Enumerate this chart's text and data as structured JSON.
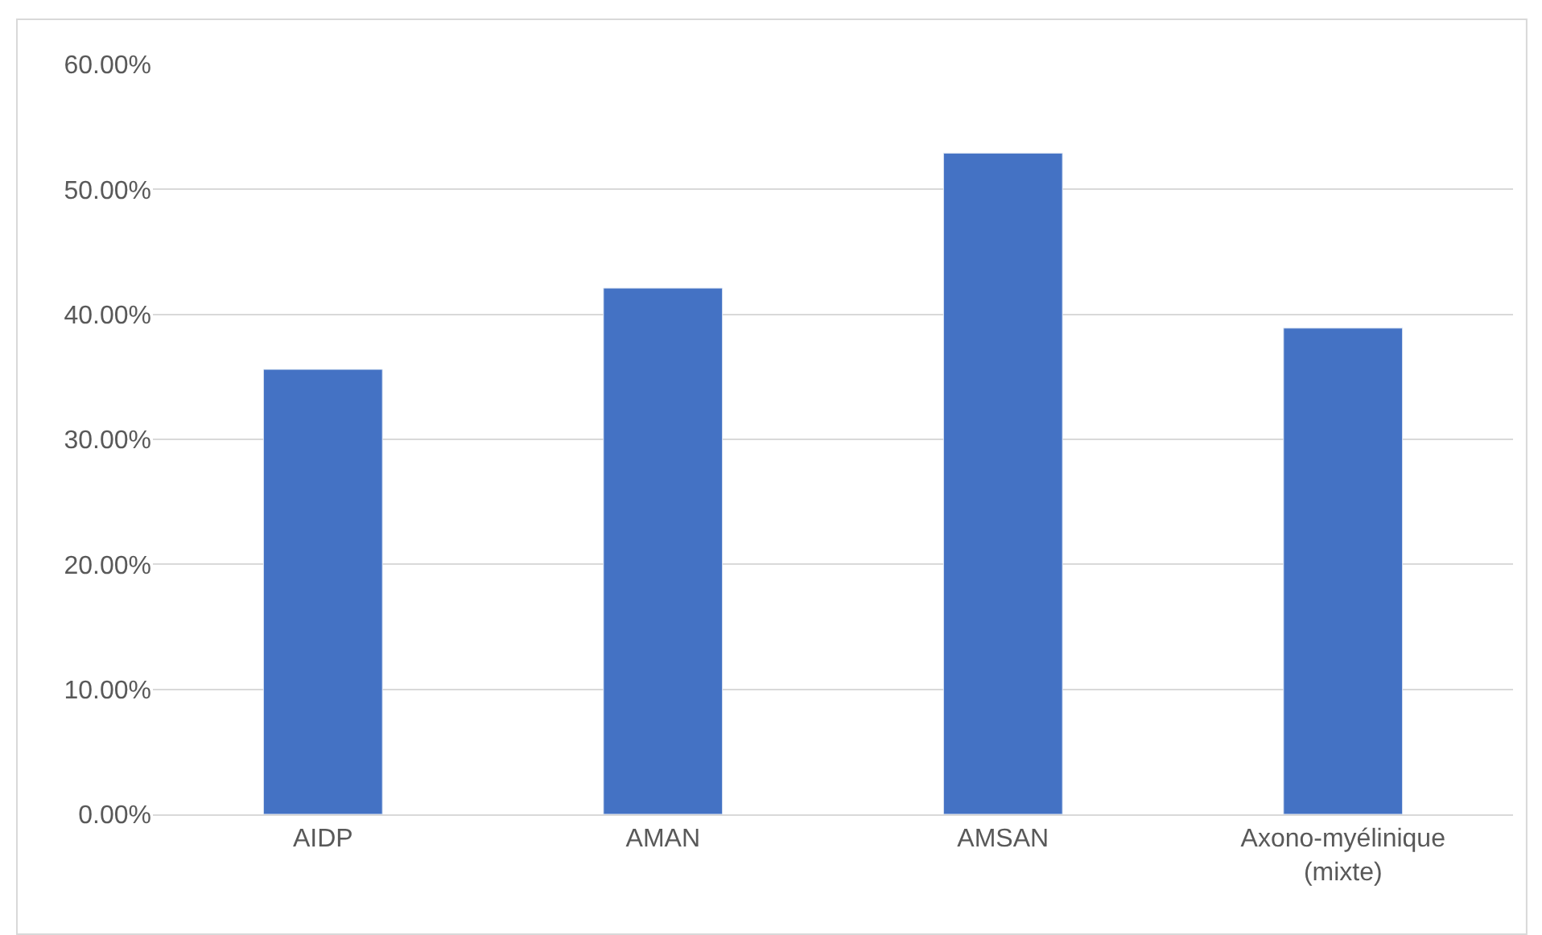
{
  "chart_data": {
    "type": "bar",
    "categories": [
      "AIDP",
      "AMAN",
      "AMSAN",
      "Axono-myélinique (mixte)"
    ],
    "values": [
      35.6,
      42.1,
      52.9,
      38.9
    ],
    "color": "#4472c4",
    "ylim": [
      0,
      60
    ],
    "yticks": [
      {
        "value": 0,
        "label": "0.00%"
      },
      {
        "value": 10,
        "label": "10.00%"
      },
      {
        "value": 20,
        "label": "20.00%"
      },
      {
        "value": 30,
        "label": "30.00%"
      },
      {
        "value": 40,
        "label": "40.00%"
      },
      {
        "value": 50,
        "label": "50.00%"
      },
      {
        "value": 60,
        "label": "60.00%"
      }
    ],
    "grid": "y",
    "legend": false
  }
}
